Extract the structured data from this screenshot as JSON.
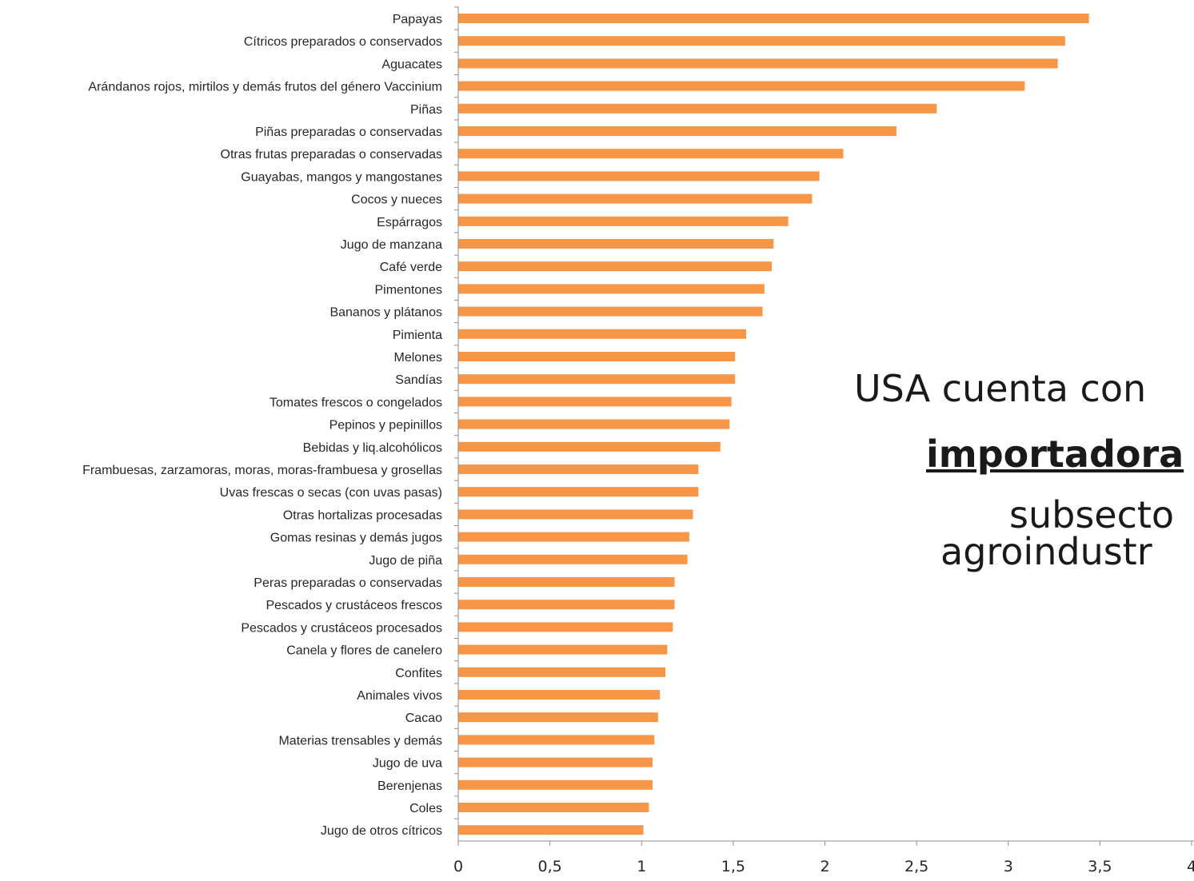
{
  "chart_data": {
    "type": "bar",
    "orientation": "horizontal",
    "title": "",
    "xlabel": "",
    "ylabel": "",
    "xlim": [
      0,
      4
    ],
    "x_ticks": [
      "0",
      "0,5",
      "1",
      "1,5",
      "2",
      "2,5",
      "3",
      "3,5",
      "4"
    ],
    "grid": false,
    "bar_color": "#F79646",
    "categories": [
      "Papayas",
      "Cítricos preparados o conservados",
      "Aguacates",
      "Arándanos rojos, mirtilos y demás frutos del género Vaccinium",
      "Piñas",
      "Piñas preparadas o conservadas",
      "Otras frutas preparadas o conservadas",
      "Guayabas, mangos y mangostanes",
      "Cocos y nueces",
      "Espárragos",
      "Jugo de manzana",
      "Café verde",
      "Pimentones",
      "Bananos y plátanos",
      "Pimienta",
      "Melones",
      "Sandías",
      "Tomates frescos o congelados",
      "Pepinos y pepinillos",
      "Bebidas y liq.alcohólicos",
      "Frambuesas, zarzamoras, moras, moras-frambuesa y grosellas",
      "Uvas frescas o secas (con uvas pasas)",
      "Otras hortalizas procesadas",
      "Gomas resinas y demás jugos",
      "Jugo de piña",
      "Peras preparadas o conservadas",
      "Pescados y crustáceos frescos",
      "Pescados y crustáceos procesados",
      "Canela y flores de canelero",
      "Confites",
      "Animales vivos",
      "Cacao",
      "Materias trensables y demás",
      "Jugo de uva",
      "Berenjenas",
      "Coles",
      "Jugo de otros cítricos"
    ],
    "values": [
      3.44,
      3.31,
      3.27,
      3.09,
      2.61,
      2.39,
      2.1,
      1.97,
      1.93,
      1.8,
      1.72,
      1.71,
      1.67,
      1.66,
      1.57,
      1.51,
      1.51,
      1.49,
      1.48,
      1.43,
      1.31,
      1.31,
      1.28,
      1.26,
      1.25,
      1.18,
      1.18,
      1.17,
      1.14,
      1.13,
      1.1,
      1.09,
      1.07,
      1.06,
      1.06,
      1.04,
      1.01
    ]
  },
  "overlay_text": {
    "line1": "USA cuenta con",
    "line2": "importadora",
    "line3": "subsecto",
    "line4": "agroindustr"
  }
}
